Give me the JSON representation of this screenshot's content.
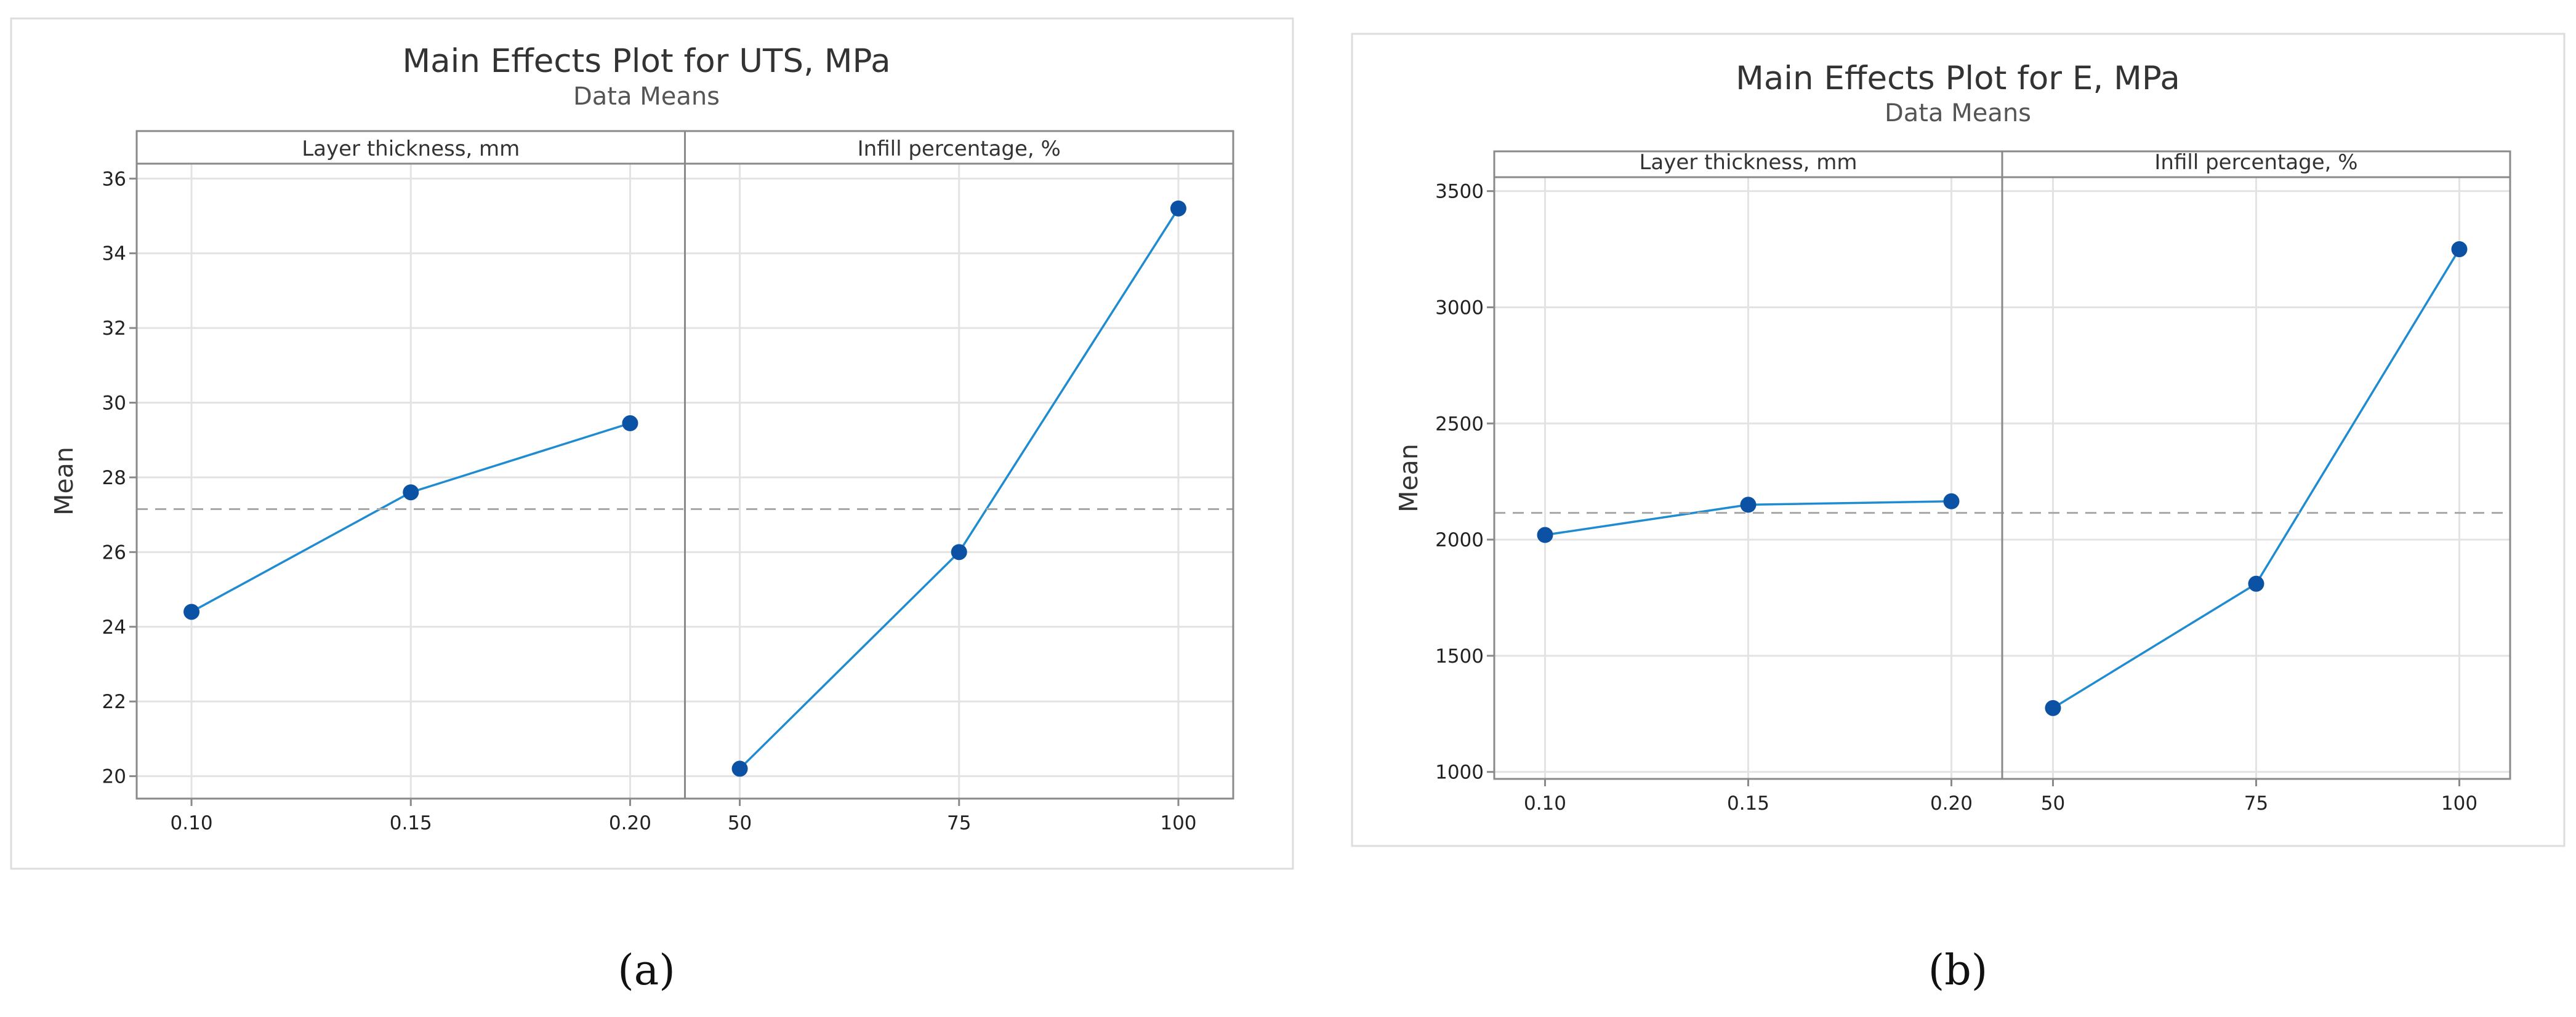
{
  "chart_data": [
    {
      "type": "line",
      "title": "Main Effects Plot for UTS, MPa",
      "subtitle": "Data Means",
      "ylabel": "Mean",
      "ylim": [
        19.4,
        36.4
      ],
      "yticks": [
        20,
        22,
        24,
        26,
        28,
        30,
        32,
        34,
        36
      ],
      "reference_mean": 27.15,
      "panels": [
        {
          "label": "Layer thickness, mm",
          "x": [
            "0.10",
            "0.15",
            "0.20"
          ],
          "values": [
            24.4,
            27.6,
            29.45
          ]
        },
        {
          "label": "Infill percentage, %",
          "x": [
            "50",
            "75",
            "100"
          ],
          "values": [
            20.2,
            26.0,
            35.2
          ]
        }
      ],
      "caption": "(a)"
    },
    {
      "type": "line",
      "title": "Main Effects Plot for E, MPa",
      "subtitle": "Data Means",
      "ylabel": "Mean",
      "ylim": [
        970,
        3560
      ],
      "yticks": [
        1000,
        1500,
        2000,
        2500,
        3000,
        3500
      ],
      "reference_mean": 2115,
      "panels": [
        {
          "label": "Layer thickness, mm",
          "x": [
            "0.10",
            "0.15",
            "0.20"
          ],
          "values": [
            2020,
            2150,
            2165
          ]
        },
        {
          "label": "Infill percentage, %",
          "x": [
            "50",
            "75",
            "100"
          ],
          "values": [
            1275,
            1810,
            3250
          ]
        }
      ],
      "caption": "(b)"
    }
  ],
  "colors": {
    "line": "#1f8bd0",
    "marker": "#0c52a4",
    "grid": "#e3e3e3",
    "frame": "#8a8a8a",
    "reference_line": "#a8a8a8",
    "panel_border": "#dddddd"
  }
}
